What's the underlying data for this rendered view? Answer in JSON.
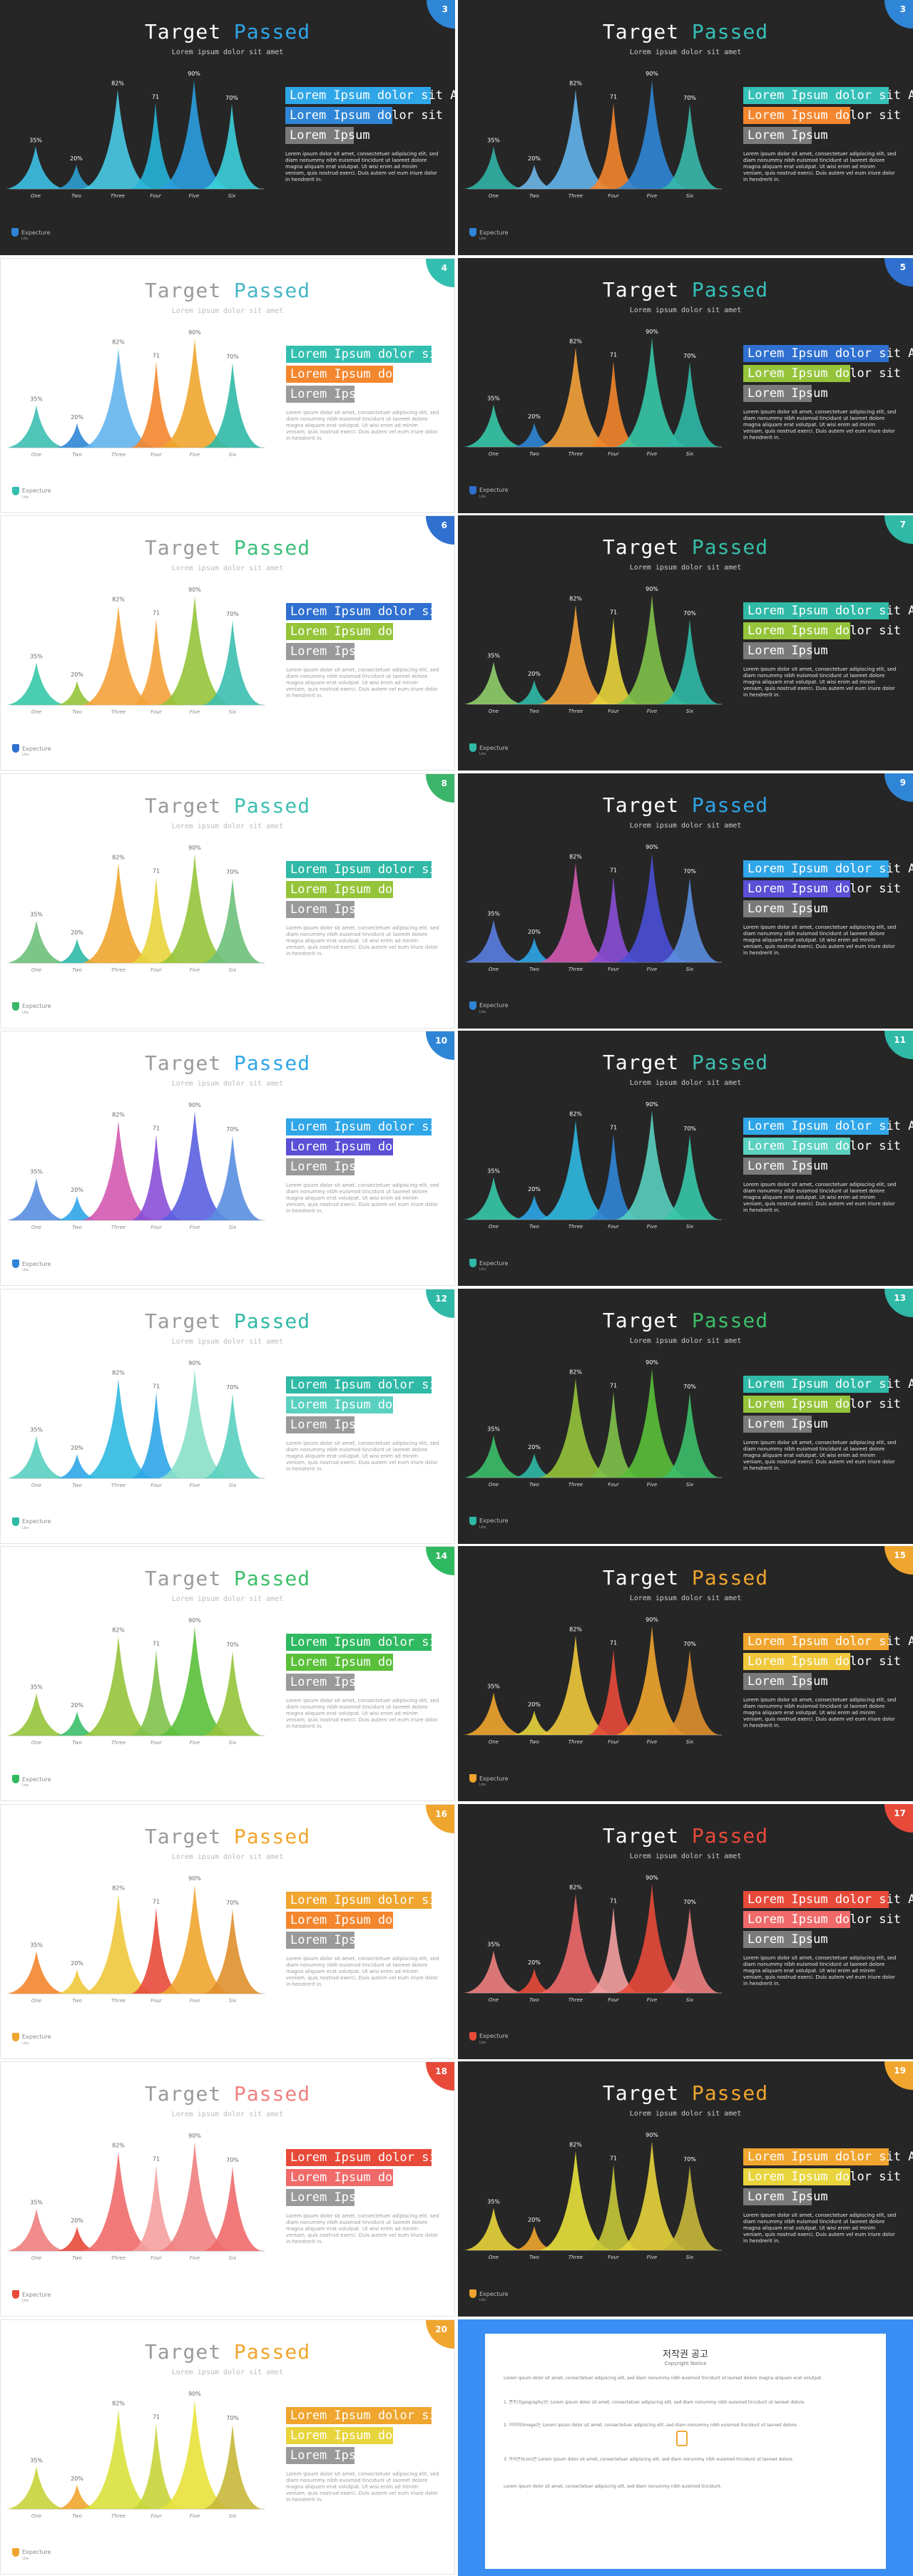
{
  "common": {
    "title_word1": "Target",
    "title_word2": "Passed",
    "subtitle": "Lorem ipsum dolor sit amet",
    "bar_texts": [
      "Lorem Ipsum dolor sit Ame",
      "Lorem Ipsum dolor sit",
      "Lorem Ipsum"
    ],
    "body_text": "Lorem ipsum dolor sit amet, consectetuer adipiscing elit, sed diam nonummy nibh euismod tincidunt ut laoreet dolore magna aliquam erat volutpat. Ut wisi enim ad minim veniam, quis nostrud exerci. Duis autem vel eum iriure dolor in hendrerit in.",
    "logo_name": "Expecture",
    "logo_sub": "Lite"
  },
  "chart_data": {
    "type": "area",
    "categories": [
      "One",
      "Two",
      "Three",
      "Four",
      "Five",
      "Six"
    ],
    "values": [
      35,
      20,
      82,
      71,
      90,
      70
    ],
    "value_labels": [
      "35%",
      "20%",
      "82%",
      "71",
      "90%",
      "70%"
    ]
  },
  "slides": [
    {
      "num": "3",
      "theme": "dark",
      "title_color": "#2fa6e8",
      "badge": "#2f86d6",
      "colors": [
        "#3ec1e6",
        "#2e9fd0",
        "#49cbe6",
        "#27b5d8",
        "#2b9fe0",
        "#3bd0dc"
      ],
      "bars": [
        "#2fa6e8",
        "#2f86d6",
        "#7a7a7a"
      ]
    },
    {
      "num": "3",
      "theme": "dark",
      "title_color": "#35c0b8",
      "badge": "#2f86d6",
      "colors": [
        "#31b3a6",
        "#6fb6e8",
        "#63b4ec",
        "#f4862e",
        "#2f86d6",
        "#37b9ab"
      ],
      "bars": [
        "#35c0b8",
        "#f4862e",
        "#7a7a7a"
      ]
    },
    {
      "num": "4",
      "theme": "light",
      "title_color": "#46b6c6",
      "badge": "#33bfb0",
      "colors": [
        "#3dbfb3",
        "#2f86d6",
        "#63b4ec",
        "#f4862e",
        "#f0a52e",
        "#2fb9a6"
      ],
      "bars": [
        "#33bfb0",
        "#f4862e",
        "#9a9a9a"
      ]
    },
    {
      "num": "5",
      "theme": "dark",
      "title_color": "#35c0b8",
      "badge": "#2f70d0",
      "colors": [
        "#37c8a8",
        "#2f86d6",
        "#f4a23a",
        "#f4862e",
        "#37c8a8",
        "#2fb9a6"
      ],
      "bars": [
        "#2f70d0",
        "#95c43a",
        "#7a7a7a"
      ]
    },
    {
      "num": "6",
      "theme": "light",
      "title_color": "#3cbf7a",
      "badge": "#2f70d0",
      "colors": [
        "#37c8a8",
        "#95c43a",
        "#f4a23a",
        "#f4a23a",
        "#95c43a",
        "#3cbfb0"
      ],
      "bars": [
        "#2f70d0",
        "#95c43a",
        "#9a9a9a"
      ]
    },
    {
      "num": "7",
      "theme": "dark",
      "title_color": "#35c0a8",
      "badge": "#2fb9a6",
      "colors": [
        "#8fce6a",
        "#2fb9a6",
        "#f4a23a",
        "#e8d43c",
        "#7fc24a",
        "#2fb9a6"
      ],
      "bars": [
        "#2fb9a6",
        "#95c43a",
        "#7a7a7a"
      ]
    },
    {
      "num": "8",
      "theme": "light",
      "title_color": "#3cbfb0",
      "badge": "#3bb56a",
      "colors": [
        "#6ec07a",
        "#2fb9a6",
        "#f0a52e",
        "#e8d43c",
        "#95c43a",
        "#6ec07a"
      ],
      "bars": [
        "#2fb9a6",
        "#95c43a",
        "#9a9a9a"
      ]
    },
    {
      "num": "9",
      "theme": "dark",
      "title_color": "#2fa6e8",
      "badge": "#2f86d6",
      "colors": [
        "#5a7ee0",
        "#2fa6e8",
        "#d35ab0",
        "#8a4fd6",
        "#4a4fd6",
        "#5a8ee0"
      ],
      "bars": [
        "#2fa6e8",
        "#5a4fd6",
        "#7a7a7a"
      ]
    },
    {
      "num": "10",
      "theme": "light",
      "title_color": "#2fa6e8",
      "badge": "#2f86d6",
      "colors": [
        "#5a8ee0",
        "#2fa6e8",
        "#d35ab0",
        "#8a4fd6",
        "#5a5fe0",
        "#5a8ee0"
      ],
      "bars": [
        "#2fa6e8",
        "#5a4fd6",
        "#9a9a9a"
      ]
    },
    {
      "num": "11",
      "theme": "dark",
      "title_color": "#3cc0b0",
      "badge": "#2fb9a6",
      "colors": [
        "#37c8a8",
        "#2fa6e8",
        "#2fb9e0",
        "#2f86d6",
        "#5ad0c0",
        "#37c8a8"
      ],
      "bars": [
        "#2fa6e8",
        "#5ad0c0",
        "#7a7a7a"
      ]
    },
    {
      "num": "12",
      "theme": "light",
      "title_color": "#2fb9a6",
      "badge": "#2fb9a6",
      "colors": [
        "#5ad0c0",
        "#2fa6e8",
        "#2fb9e0",
        "#2fa6e8",
        "#8ae0c8",
        "#5ad0c0"
      ],
      "bars": [
        "#2fb9a6",
        "#5ad0c0",
        "#9a9a9a"
      ]
    },
    {
      "num": "13",
      "theme": "dark",
      "title_color": "#3cbf6a",
      "badge": "#2fb9a6",
      "colors": [
        "#3cbf6a",
        "#2fb9a6",
        "#95c43a",
        "#7fc24a",
        "#5ac03a",
        "#3cbf6a"
      ],
      "bars": [
        "#2fb9a6",
        "#95c43a",
        "#7a7a7a"
      ]
    },
    {
      "num": "14",
      "theme": "light",
      "title_color": "#3cbf6a",
      "badge": "#2fb960",
      "colors": [
        "#95c43a",
        "#3cbf6a",
        "#95c43a",
        "#7fc24a",
        "#5ac03a",
        "#95c43a"
      ],
      "bars": [
        "#2fb960",
        "#5ac03a",
        "#9a9a9a"
      ]
    },
    {
      "num": "15",
      "theme": "dark",
      "title_color": "#f0a52e",
      "badge": "#f0a52e",
      "colors": [
        "#f0a52e",
        "#e8d43c",
        "#f0c83c",
        "#e84a3a",
        "#f0a52e",
        "#e0902e"
      ],
      "bars": [
        "#f0a52e",
        "#f0c83c",
        "#7a7a7a"
      ]
    },
    {
      "num": "16",
      "theme": "light",
      "title_color": "#f0a52e",
      "badge": "#f0a52e",
      "colors": [
        "#f4862e",
        "#f0c83c",
        "#f0c83c",
        "#e84a3a",
        "#f0a52e",
        "#e0902e"
      ],
      "bars": [
        "#f0a52e",
        "#f4862e",
        "#9a9a9a"
      ]
    },
    {
      "num": "17",
      "theme": "dark",
      "title_color": "#e84a3a",
      "badge": "#e84a3a",
      "colors": [
        "#f08080",
        "#e84a3a",
        "#f06a6a",
        "#f4a0a0",
        "#e84a3a",
        "#f08080"
      ],
      "bars": [
        "#e84a3a",
        "#f06a6a",
        "#7a7a7a"
      ]
    },
    {
      "num": "18",
      "theme": "light",
      "title_color": "#f08080",
      "badge": "#e84a3a",
      "colors": [
        "#f08080",
        "#e84a3a",
        "#f06a6a",
        "#f4a0a0",
        "#f08080",
        "#f06a6a"
      ],
      "bars": [
        "#e84a3a",
        "#f06a6a",
        "#9a9a9a"
      ]
    },
    {
      "num": "19",
      "theme": "dark",
      "title_color": "#f0a52e",
      "badge": "#f0a52e",
      "colors": [
        "#e8d43c",
        "#f0a52e",
        "#e8e23c",
        "#c8c83a",
        "#e8d43c",
        "#c8b83a"
      ],
      "bars": [
        "#f0a52e",
        "#e8d43c",
        "#7a7a7a"
      ]
    },
    {
      "num": "20",
      "theme": "light",
      "title_color": "#f0a52e",
      "badge": "#f0a52e",
      "colors": [
        "#c8d43c",
        "#f0a52e",
        "#d8e23c",
        "#c8d43c",
        "#e8e23c",
        "#c8b83a"
      ],
      "bars": [
        "#f0a52e",
        "#e8d43c",
        "#9a9a9a"
      ]
    }
  ],
  "copyright": {
    "title": "저작권 공고",
    "subtitle": "Copyright Notice",
    "paragraphs": [
      "Lorem ipsum dolor sit amet, consectetuer adipiscing elit, sed diam nonummy nibh euismod tincidunt ut laoreet dolore magna aliquam erat volutpat.",
      "1. 폰트(Typography)는 Lorem ipsum dolor sit amet, consectetuer adipiscing elit, sed diam nonummy nibh euismod tincidunt ut laoreet dolore.",
      "2. 이미지(Image)는 Lorem ipsum dolor sit amet, consectetuer adipiscing elit, sed diam nonummy nibh euismod tincidunt ut laoreet dolore.",
      "3. 아이콘(Icon)은 Lorem ipsum dolor sit amet, consectetuer adipiscing elit, sed diam nonummy nibh euismod tincidunt ut laoreet dolore.",
      "Lorem ipsum dolor sit amet, consectetuer adipiscing elit, sed diam nonummy nibh euismod tincidunt."
    ]
  }
}
